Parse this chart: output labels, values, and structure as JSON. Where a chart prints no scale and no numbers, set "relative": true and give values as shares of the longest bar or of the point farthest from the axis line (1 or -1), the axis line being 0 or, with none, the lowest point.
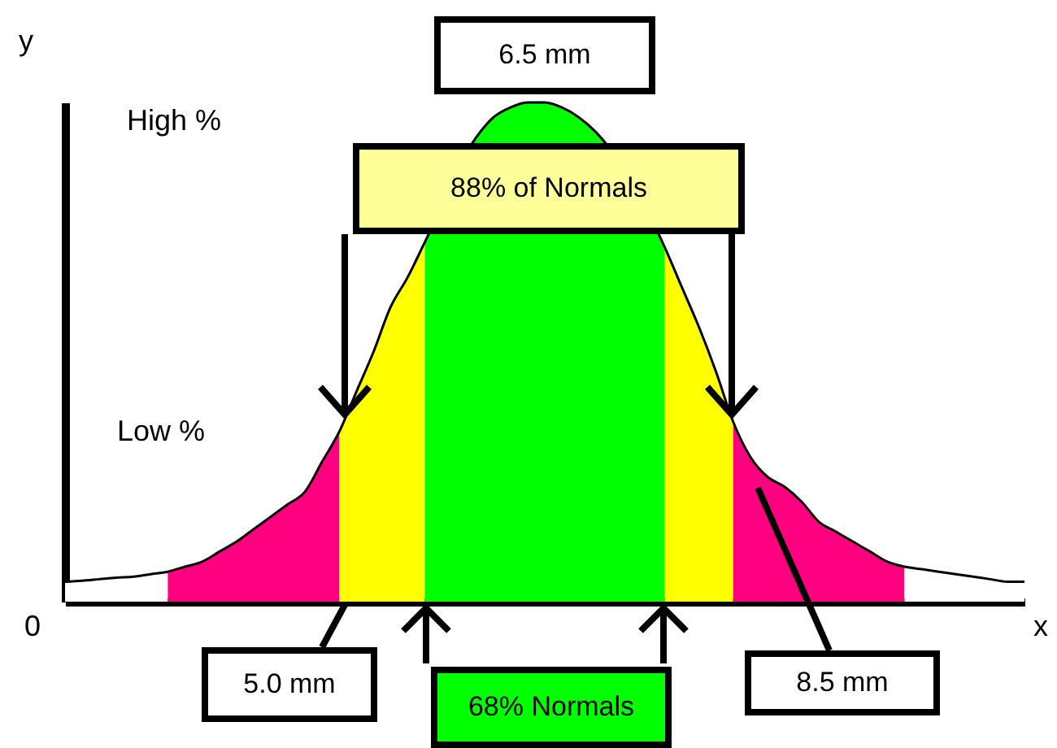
{
  "chart_data": {
    "type": "area",
    "relative": true,
    "xlabel": "x",
    "ylabel": "y",
    "categories": [
      null,
      null,
      null,
      null,
      null,
      null,
      null,
      null,
      null,
      null,
      null,
      null,
      null,
      null,
      null,
      null,
      null,
      null,
      null,
      null,
      null,
      null,
      null,
      null,
      null,
      null,
      null,
      null,
      null,
      null,
      null,
      null,
      null,
      null,
      null,
      null,
      null,
      null,
      null,
      null,
      null,
      null,
      null,
      null,
      null,
      null,
      null,
      null,
      null,
      null,
      null,
      null,
      null,
      null,
      null,
      null,
      null
    ],
    "series": [
      {
        "color": "#ffffff",
        "values": [
          0.04,
          0.042,
          0.045,
          0.048,
          0.05,
          0.055,
          0.06,
          null,
          null,
          null,
          null,
          null,
          null,
          null,
          null,
          null,
          null,
          null,
          null,
          null,
          null,
          null,
          null,
          null,
          null,
          null,
          null,
          null,
          null,
          null,
          null,
          null,
          null,
          null,
          null,
          null,
          null,
          null,
          null,
          null,
          null,
          null,
          null,
          null,
          null,
          null,
          null,
          null,
          null,
          null,
          null,
          null,
          null,
          null,
          null,
          null,
          null
        ]
      },
      {
        "color": "#ff0080",
        "values": [
          null,
          null,
          null,
          null,
          null,
          null,
          0.06,
          0.07,
          0.08,
          0.1,
          0.12,
          0.145,
          0.17,
          0.195,
          0.22,
          0.28,
          0.34,
          null,
          null,
          null,
          null,
          null,
          null,
          null,
          null,
          null,
          null,
          null,
          null,
          null,
          null,
          null,
          null,
          null,
          null,
          null,
          null,
          null,
          null,
          null,
          null,
          null,
          null,
          null,
          null,
          null,
          null,
          null,
          null,
          null,
          null,
          null,
          null,
          null,
          null,
          null,
          null
        ]
      },
      {
        "color": "#ffff00",
        "values": [
          null,
          null,
          null,
          null,
          null,
          null,
          null,
          null,
          null,
          null,
          null,
          null,
          null,
          null,
          null,
          null,
          0.34,
          0.42,
          0.5,
          0.59,
          0.65,
          0.72,
          null,
          null,
          null,
          null,
          null,
          null,
          null,
          null,
          null,
          null,
          null,
          null,
          null,
          null,
          null,
          null,
          null,
          null,
          null,
          null,
          null,
          null,
          null,
          null,
          null,
          null,
          null,
          null,
          null,
          null,
          null,
          null,
          null,
          null,
          null
        ]
      },
      {
        "color": "#00ff00",
        "values": [
          null,
          null,
          null,
          null,
          null,
          null,
          null,
          null,
          null,
          null,
          null,
          null,
          null,
          null,
          null,
          null,
          null,
          null,
          null,
          null,
          null,
          0.72,
          null,
          null,
          0.93,
          0.97,
          0.99,
          1,
          1,
          0.99,
          0.97,
          0.94,
          null,
          null,
          null,
          0.71,
          null,
          null,
          null,
          null,
          null,
          null,
          null,
          null,
          null,
          null,
          null,
          null,
          null,
          null,
          null,
          null,
          null,
          null,
          null,
          null,
          null
        ]
      },
      {
        "color": "#ffff00",
        "values": [
          null,
          null,
          null,
          null,
          null,
          null,
          null,
          null,
          null,
          null,
          null,
          null,
          null,
          null,
          null,
          null,
          null,
          null,
          null,
          null,
          null,
          null,
          null,
          null,
          null,
          null,
          null,
          null,
          null,
          null,
          null,
          null,
          null,
          null,
          null,
          0.71,
          0.63,
          0.55,
          0.46,
          0.36,
          null,
          null,
          null,
          null,
          null,
          null,
          null,
          null,
          null,
          null,
          null,
          null,
          null,
          null,
          null,
          null,
          null
        ]
      },
      {
        "color": "#ff0080",
        "values": [
          null,
          null,
          null,
          null,
          null,
          null,
          null,
          null,
          null,
          null,
          null,
          null,
          null,
          null,
          null,
          null,
          null,
          null,
          null,
          null,
          null,
          null,
          null,
          null,
          null,
          null,
          null,
          null,
          null,
          null,
          null,
          null,
          null,
          null,
          null,
          null,
          null,
          null,
          null,
          0.36,
          0.29,
          0.25,
          0.23,
          0.2,
          0.16,
          0.14,
          0.12,
          0.1,
          0.08,
          0.07,
          null,
          null,
          null,
          null,
          null,
          null,
          null
        ]
      },
      {
        "color": "#ffffff",
        "values": [
          null,
          null,
          null,
          null,
          null,
          null,
          null,
          null,
          null,
          null,
          null,
          null,
          null,
          null,
          null,
          null,
          null,
          null,
          null,
          null,
          null,
          null,
          null,
          null,
          null,
          null,
          null,
          null,
          null,
          null,
          null,
          null,
          null,
          null,
          null,
          null,
          null,
          null,
          null,
          null,
          null,
          null,
          null,
          null,
          null,
          null,
          null,
          null,
          null,
          0.07,
          0.065,
          0.06,
          0.055,
          0.05,
          0.045,
          0.04,
          0.04
        ]
      },
      {
        "type": "line",
        "color": "#000000",
        "values": [
          0.04,
          0.042,
          0.045,
          0.048,
          0.05,
          0.055,
          0.06,
          0.07,
          0.08,
          0.1,
          0.12,
          0.145,
          0.17,
          0.195,
          0.22,
          0.28,
          0.34,
          0.42,
          0.5,
          0.59,
          0.65,
          0.72,
          null,
          null,
          0.93,
          0.97,
          0.99,
          1,
          1,
          0.99,
          0.97,
          0.94,
          null,
          null,
          null,
          0.71,
          0.63,
          0.55,
          0.46,
          0.36,
          0.29,
          0.25,
          0.23,
          0.2,
          0.16,
          0.14,
          0.12,
          0.1,
          0.08,
          0.07,
          0.065,
          0.06,
          0.055,
          0.05,
          0.045,
          0.04,
          0.04
        ]
      }
    ],
    "annotations": [
      "6.5 mm",
      "88% of Normals",
      "68% Normals",
      "5.0 mm",
      "8.5 mm",
      "High %",
      "Low %",
      "0"
    ]
  }
}
